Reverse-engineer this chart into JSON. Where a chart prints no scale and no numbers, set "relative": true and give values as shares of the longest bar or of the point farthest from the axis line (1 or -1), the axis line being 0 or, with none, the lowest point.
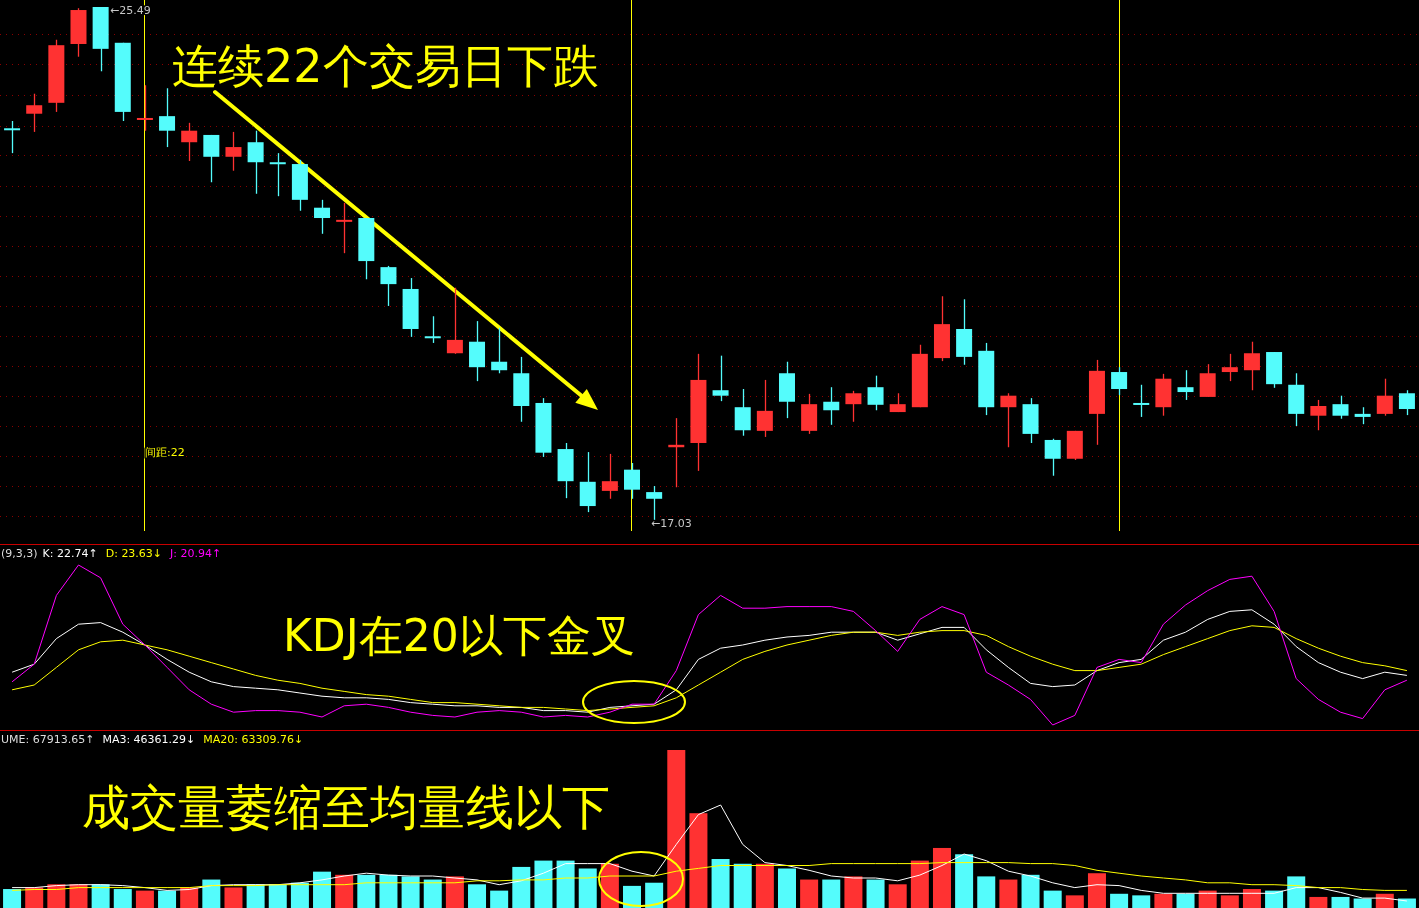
{
  "chart_data": [
    {
      "type": "candlestick",
      "categories": [
        null,
        null,
        null,
        null,
        null,
        null,
        null,
        null,
        null,
        null,
        null,
        null,
        null,
        null,
        null,
        null,
        null,
        null,
        null,
        null,
        null,
        null,
        null,
        null,
        null,
        null,
        null,
        null,
        null,
        null,
        null,
        null,
        null,
        null,
        null,
        null,
        null,
        null,
        null,
        null,
        null,
        null,
        null,
        null,
        null,
        null,
        null,
        null,
        null,
        null,
        null,
        null,
        null,
        null,
        null,
        null,
        null,
        null,
        null,
        null,
        null,
        null,
        null,
        null
      ],
      "ohlc": [
        [
          23.49,
          23.61,
          23.08,
          23.49
        ],
        [
          23.73,
          24.06,
          23.43,
          23.87
        ],
        [
          23.91,
          24.95,
          23.76,
          24.86
        ],
        [
          24.88,
          25.47,
          24.67,
          25.44
        ],
        [
          25.49,
          25.49,
          24.43,
          24.8
        ],
        [
          24.9,
          24.9,
          23.61,
          23.76
        ],
        [
          23.64,
          24.2,
          23.45,
          23.66
        ],
        [
          23.69,
          24.15,
          23.18,
          23.45
        ],
        [
          23.26,
          23.58,
          22.95,
          23.45
        ],
        [
          23.38,
          23.38,
          22.6,
          23.02
        ],
        [
          23.02,
          23.43,
          22.79,
          23.18
        ],
        [
          23.26,
          23.45,
          22.41,
          22.93
        ],
        [
          22.93,
          23.08,
          22.37,
          22.92
        ],
        [
          22.9,
          22.97,
          22.13,
          22.31
        ],
        [
          22.18,
          22.31,
          21.75,
          22.01
        ],
        [
          21.97,
          22.26,
          21.43,
          21.98
        ],
        [
          22.01,
          22.01,
          21.0,
          21.3
        ],
        [
          21.2,
          21.22,
          20.56,
          20.92
        ],
        [
          20.84,
          21.02,
          20.05,
          20.18
        ],
        [
          20.06,
          20.39,
          19.95,
          20.05
        ],
        [
          19.78,
          20.86,
          19.77,
          20.0
        ],
        [
          19.97,
          20.31,
          19.32,
          19.55
        ],
        [
          19.64,
          20.2,
          19.45,
          19.5
        ],
        [
          19.45,
          19.72,
          18.65,
          18.91
        ],
        [
          18.96,
          19.04,
          18.07,
          18.14
        ],
        [
          18.2,
          18.3,
          17.39,
          17.67
        ],
        [
          17.66,
          18.15,
          17.16,
          17.26
        ],
        [
          17.51,
          18.12,
          17.38,
          17.67
        ],
        [
          17.86,
          17.97,
          17.38,
          17.53
        ],
        [
          17.49,
          17.59,
          17.03,
          17.38
        ],
        [
          18.23,
          18.71,
          17.57,
          18.27
        ],
        [
          18.3,
          19.77,
          17.84,
          19.34
        ],
        [
          19.17,
          19.74,
          18.99,
          19.08
        ],
        [
          18.89,
          19.19,
          18.42,
          18.51
        ],
        [
          18.5,
          19.34,
          18.4,
          18.83
        ],
        [
          19.45,
          19.64,
          18.71,
          18.98
        ],
        [
          18.5,
          19.11,
          18.45,
          18.94
        ],
        [
          18.98,
          19.22,
          18.6,
          18.84
        ],
        [
          18.94,
          19.16,
          18.65,
          19.12
        ],
        [
          19.22,
          19.41,
          18.84,
          18.93
        ],
        [
          18.81,
          19.12,
          18.81,
          18.94
        ],
        [
          18.89,
          19.92,
          18.89,
          19.77
        ],
        [
          19.7,
          20.72,
          19.65,
          20.26
        ],
        [
          20.18,
          20.67,
          19.59,
          19.72
        ],
        [
          19.82,
          19.95,
          18.76,
          18.89
        ],
        [
          18.89,
          19.12,
          18.23,
          19.08
        ],
        [
          18.94,
          19.04,
          18.3,
          18.45
        ],
        [
          18.35,
          18.37,
          17.76,
          18.04
        ],
        [
          18.04,
          18.5,
          18.02,
          18.5
        ],
        [
          18.78,
          19.67,
          18.27,
          19.49
        ],
        [
          19.47,
          19.55,
          19.09,
          19.19
        ],
        [
          18.96,
          19.26,
          18.73,
          18.94
        ],
        [
          18.89,
          19.44,
          18.75,
          19.36
        ],
        [
          19.22,
          19.5,
          19.01,
          19.14
        ],
        [
          19.06,
          19.6,
          19.06,
          19.45
        ],
        [
          19.47,
          19.77,
          19.32,
          19.55
        ],
        [
          19.5,
          19.97,
          19.17,
          19.78
        ],
        [
          19.8,
          19.8,
          19.21,
          19.27
        ],
        [
          19.26,
          19.45,
          18.58,
          18.78
        ],
        [
          18.75,
          19.01,
          18.51,
          18.91
        ],
        [
          18.94,
          19.08,
          18.7,
          18.75
        ],
        [
          18.78,
          18.89,
          18.61,
          18.73
        ],
        [
          18.78,
          19.36,
          18.75,
          19.08
        ],
        [
          19.12,
          19.17,
          18.76,
          18.86
        ]
      ],
      "colors": [
        "#54fcfc",
        "#ff3232",
        "#ff3232",
        "#ff3232",
        "#54fcfc",
        "#54fcfc",
        "#ff3232",
        "#54fcfc",
        "#ff3232",
        "#54fcfc",
        "#ff3232",
        "#54fcfc",
        "#54fcfc",
        "#54fcfc",
        "#54fcfc",
        "#ff3232",
        "#54fcfc",
        "#54fcfc",
        "#54fcfc",
        "#54fcfc",
        "#ff3232",
        "#54fcfc",
        "#54fcfc",
        "#54fcfc",
        "#54fcfc",
        "#54fcfc",
        "#54fcfc",
        "#ff3232",
        "#54fcfc",
        "#54fcfc",
        "#ff3232",
        "#ff3232",
        "#54fcfc",
        "#54fcfc",
        "#ff3232",
        "#54fcfc",
        "#ff3232",
        "#54fcfc",
        "#ff3232",
        "#54fcfc",
        "#ff3232",
        "#ff3232",
        "#ff3232",
        "#54fcfc",
        "#54fcfc",
        "#ff3232",
        "#54fcfc",
        "#54fcfc",
        "#ff3232",
        "#ff3232",
        "#54fcfc",
        "#54fcfc",
        "#ff3232",
        "#54fcfc",
        "#ff3232",
        "#ff3232",
        "#ff3232",
        "#54fcfc",
        "#54fcfc",
        "#ff3232",
        "#54fcfc",
        "#54fcfc",
        "#ff3232",
        "#54fcfc"
      ],
      "annotations": [
        "连续22个交易日下跌",
        "←25.49",
        "←17.03",
        "间距:22"
      ],
      "grid": true,
      "yticks": [
        {
          "value": 25.04,
          "label": null
        },
        {
          "value": 24.55,
          "label": null
        },
        {
          "value": 24.04,
          "label": null
        },
        {
          "value": 23.53,
          "label": null
        },
        {
          "value": 23.05,
          "label": null
        },
        {
          "value": 22.54,
          "label": null
        },
        {
          "value": 22.04,
          "label": null
        },
        {
          "value": 21.55,
          "label": null
        },
        {
          "value": 21.05,
          "label": null
        },
        {
          "value": 20.56,
          "label": null
        },
        {
          "value": 20.06,
          "label": null
        },
        {
          "value": 19.57,
          "label": null
        },
        {
          "value": 19.08,
          "label": null
        },
        {
          "value": 18.58,
          "label": null
        },
        {
          "value": 18.09,
          "label": null
        },
        {
          "value": 17.59,
          "label": null
        },
        {
          "value": 17.1,
          "label": null
        }
      ]
    },
    {
      "type": "line",
      "relative": true,
      "title": "(9,3,3)",
      "categories": [
        null,
        null,
        null,
        null,
        null,
        null,
        null,
        null,
        null,
        null,
        null,
        null,
        null,
        null,
        null,
        null,
        null,
        null,
        null,
        null,
        null,
        null,
        null,
        null,
        null,
        null,
        null,
        null,
        null,
        null,
        null,
        null,
        null,
        null,
        null,
        null,
        null,
        null,
        null,
        null,
        null,
        null,
        null,
        null,
        null,
        null,
        null,
        null,
        null,
        null,
        null,
        null,
        null,
        null,
        null,
        null,
        null,
        null,
        null,
        null,
        null,
        null,
        null,
        null
      ],
      "series": [
        {
          "name": "K: 22.74↑",
          "color": "#ffffff",
          "values": [
            0.33,
            0.38,
            0.54,
            0.63,
            0.64,
            0.58,
            0.5,
            0.41,
            0.33,
            0.27,
            0.24,
            0.23,
            0.22,
            0.2,
            0.18,
            0.17,
            0.17,
            0.16,
            0.14,
            0.13,
            0.12,
            0.12,
            0.11,
            0.11,
            0.09,
            0.09,
            0.08,
            0.11,
            0.12,
            0.13,
            0.22,
            0.41,
            0.48,
            0.5,
            0.53,
            0.55,
            0.56,
            0.58,
            0.58,
            0.58,
            0.53,
            0.57,
            0.61,
            0.61,
            0.47,
            0.36,
            0.26,
            0.24,
            0.25,
            0.34,
            0.39,
            0.41,
            0.53,
            0.58,
            0.66,
            0.71,
            0.72,
            0.63,
            0.49,
            0.39,
            0.33,
            0.29,
            0.33,
            0.31
          ]
        },
        {
          "name": "D: 23.63↓",
          "color": "#ffff00",
          "values": [
            0.22,
            0.25,
            0.36,
            0.47,
            0.52,
            0.53,
            0.5,
            0.47,
            0.43,
            0.39,
            0.35,
            0.31,
            0.28,
            0.26,
            0.23,
            0.21,
            0.19,
            0.18,
            0.16,
            0.14,
            0.14,
            0.13,
            0.12,
            0.11,
            0.11,
            0.1,
            0.09,
            0.1,
            0.11,
            0.12,
            0.17,
            0.25,
            0.33,
            0.41,
            0.46,
            0.5,
            0.53,
            0.56,
            0.58,
            0.58,
            0.56,
            0.58,
            0.59,
            0.59,
            0.56,
            0.49,
            0.43,
            0.38,
            0.34,
            0.34,
            0.36,
            0.38,
            0.44,
            0.49,
            0.54,
            0.59,
            0.62,
            0.61,
            0.54,
            0.48,
            0.43,
            0.39,
            0.37,
            0.34
          ]
        },
        {
          "name": "J: 20.94↑",
          "color": "#ff00ff",
          "values": [
            0.27,
            0.38,
            0.81,
            1.0,
            0.92,
            0.63,
            0.5,
            0.36,
            0.22,
            0.13,
            0.08,
            0.09,
            0.09,
            0.08,
            0.05,
            0.12,
            0.13,
            0.11,
            0.08,
            0.06,
            0.05,
            0.08,
            0.09,
            0.08,
            0.05,
            0.06,
            0.05,
            0.08,
            0.13,
            0.13,
            0.34,
            0.69,
            0.81,
            0.73,
            0.73,
            0.74,
            0.74,
            0.74,
            0.71,
            0.59,
            0.46,
            0.66,
            0.74,
            0.69,
            0.33,
            0.25,
            0.16,
            0,
            0.06,
            0.36,
            0.41,
            0.39,
            0.63,
            0.75,
            0.84,
            0.91,
            0.93,
            0.71,
            0.29,
            0.16,
            0.08,
            0.04,
            0.22,
            0.28
          ]
        }
      ],
      "annotations": [
        "KDJ在20以下金叉"
      ]
    },
    {
      "type": "bar",
      "relative": true,
      "categories": [
        null,
        null,
        null,
        null,
        null,
        null,
        null,
        null,
        null,
        null,
        null,
        null,
        null,
        null,
        null,
        null,
        null,
        null,
        null,
        null,
        null,
        null,
        null,
        null,
        null,
        null,
        null,
        null,
        null,
        null,
        null,
        null,
        null,
        null,
        null,
        null,
        null,
        null,
        null,
        null,
        null,
        null,
        null,
        null,
        null,
        null,
        null,
        null,
        null,
        null,
        null,
        null,
        null,
        null,
        null,
        null,
        null,
        null,
        null,
        null,
        null,
        null,
        null,
        null
      ],
      "series": [
        {
          "name": "UME: 67913.65↑",
          "colors": [
            "#54fcfc",
            "#ff3232",
            "#ff3232",
            "#ff3232",
            "#54fcfc",
            "#54fcfc",
            "#ff3232",
            "#54fcfc",
            "#ff3232",
            "#54fcfc",
            "#ff3232",
            "#54fcfc",
            "#54fcfc",
            "#54fcfc",
            "#54fcfc",
            "#ff3232",
            "#54fcfc",
            "#54fcfc",
            "#54fcfc",
            "#54fcfc",
            "#ff3232",
            "#54fcfc",
            "#54fcfc",
            "#54fcfc",
            "#54fcfc",
            "#54fcfc",
            "#54fcfc",
            "#ff3232",
            "#54fcfc",
            "#54fcfc",
            "#ff3232",
            "#ff3232",
            "#54fcfc",
            "#54fcfc",
            "#ff3232",
            "#54fcfc",
            "#ff3232",
            "#54fcfc",
            "#ff3232",
            "#54fcfc",
            "#ff3232",
            "#ff3232",
            "#ff3232",
            "#54fcfc",
            "#54fcfc",
            "#ff3232",
            "#54fcfc",
            "#54fcfc",
            "#ff3232",
            "#ff3232",
            "#54fcfc",
            "#54fcfc",
            "#ff3232",
            "#54fcfc",
            "#ff3232",
            "#ff3232",
            "#ff3232",
            "#54fcfc",
            "#54fcfc",
            "#ff3232",
            "#54fcfc",
            "#54fcfc",
            "#ff3232",
            "#54fcfc"
          ],
          "values": [
            0.12,
            0.13,
            0.15,
            0.15,
            0.15,
            0.12,
            0.11,
            0.11,
            0.13,
            0.18,
            0.13,
            0.15,
            0.15,
            0.16,
            0.23,
            0.21,
            0.21,
            0.21,
            0.2,
            0.18,
            0.2,
            0.15,
            0.11,
            0.26,
            0.3,
            0.3,
            0.25,
            0.28,
            0.14,
            0.16,
            1.0,
            0.6,
            0.31,
            0.28,
            0.28,
            0.25,
            0.18,
            0.18,
            0.2,
            0.18,
            0.15,
            0.3,
            0.38,
            0.34,
            0.2,
            0.18,
            0.21,
            0.11,
            0.08,
            0.22,
            0.09,
            0.08,
            0.09,
            0.09,
            0.11,
            0.08,
            0.12,
            0.11,
            0.2,
            0.07,
            0.07,
            0.06,
            0.09,
            0.06
          ]
        }
      ],
      "annotations": [
        "成交量萎缩至均量线以下"
      ]
    },
    {
      "type": "line",
      "relative": true,
      "categories": [
        null,
        null,
        null,
        null,
        null,
        null,
        null,
        null,
        null,
        null,
        null,
        null,
        null,
        null,
        null,
        null,
        null,
        null,
        null,
        null,
        null,
        null,
        null,
        null,
        null,
        null,
        null,
        null,
        null,
        null,
        null,
        null,
        null,
        null,
        null,
        null,
        null,
        null,
        null,
        null,
        null,
        null,
        null,
        null,
        null,
        null,
        null,
        null,
        null,
        null,
        null,
        null,
        null,
        null,
        null,
        null,
        null,
        null,
        null,
        null,
        null,
        null,
        null,
        null
      ],
      "series": [
        {
          "name": "MA3: 46361.29↓",
          "color": "#ffffff",
          "values": [
            0.14,
            0.14,
            0.16,
            0.17,
            0.17,
            0.16,
            0.14,
            0.11,
            0.12,
            0.16,
            0.17,
            0.17,
            0.17,
            0.19,
            0.22,
            0.26,
            0.29,
            0.27,
            0.26,
            0.26,
            0.24,
            0.22,
            0.17,
            0.21,
            0.29,
            0.39,
            0.39,
            0.39,
            0.31,
            0.26,
            0.59,
            0.9,
            1.0,
            0.59,
            0.4,
            0.37,
            0.32,
            0.26,
            0.24,
            0.24,
            0.21,
            0.27,
            0.37,
            0.49,
            0.42,
            0.31,
            0.26,
            0.19,
            0.14,
            0.17,
            0.16,
            0.11,
            0.08,
            0.08,
            0.08,
            0.08,
            0.08,
            0.08,
            0.14,
            0.14,
            0.09,
            0.03,
            0.03,
            0
          ]
        },
        {
          "name": "MA20: 63309.76↓",
          "color": "#ffff00",
          "values": [
            0.11,
            0.12,
            0.12,
            0.14,
            0.14,
            0.14,
            0.14,
            0.14,
            0.14,
            0.16,
            0.16,
            0.16,
            0.17,
            0.17,
            0.17,
            0.17,
            0.19,
            0.19,
            0.19,
            0.19,
            0.19,
            0.21,
            0.21,
            0.22,
            0.22,
            0.24,
            0.24,
            0.26,
            0.26,
            0.26,
            0.31,
            0.34,
            0.37,
            0.37,
            0.37,
            0.37,
            0.37,
            0.39,
            0.39,
            0.39,
            0.39,
            0.39,
            0.4,
            0.4,
            0.4,
            0.4,
            0.39,
            0.39,
            0.37,
            0.32,
            0.29,
            0.26,
            0.24,
            0.22,
            0.19,
            0.19,
            0.17,
            0.17,
            0.16,
            0.14,
            0.14,
            0.12,
            0.11,
            0.11
          ]
        }
      ]
    }
  ]
}
